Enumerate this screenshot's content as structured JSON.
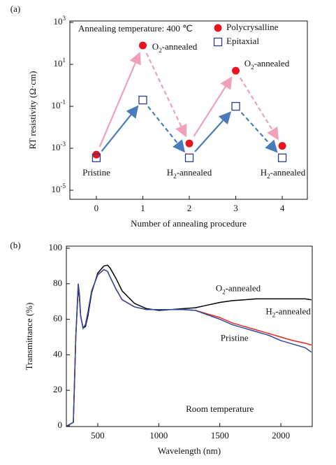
{
  "chart_data": [
    {
      "type": "scatter",
      "panel_label": "(a)",
      "y_label": "RT resistivity (Ω·cm)",
      "x_label": "Number of annealing procedure",
      "log_y": true,
      "legend": "upper right",
      "x": [
        0,
        1,
        2,
        3,
        4
      ],
      "xlim": [
        -0.57,
        4.54
      ],
      "xticks": [
        0,
        1,
        2,
        3,
        4
      ],
      "ylim": [
        3.7e-06,
        1175
      ],
      "yticks": [
        {
          "value": 1e-05,
          "label": "10^-5"
        },
        {
          "value": 0.001,
          "label": "10^-3"
        },
        {
          "value": 0.1,
          "label": "10^-1"
        },
        {
          "value": 10,
          "label": "10^1"
        },
        {
          "value": 1000,
          "label": "10^3"
        }
      ],
      "series": [
        {
          "name": "Polycrysalline",
          "color": "#e8141e",
          "marker": "filled-circle",
          "arrow_color": "#f0a0bc",
          "values": [
            0.0005,
            80,
            0.0017,
            5,
            0.0013
          ]
        },
        {
          "name": "Epitaxial",
          "color": "#2e3a8c",
          "marker": "open-square",
          "arrow_color": "#4a7cbc",
          "values": [
            0.00035,
            0.2,
            0.00035,
            0.1,
            0.00035
          ]
        }
      ],
      "annotations": [
        "Annealing temperature: 400 ℃",
        "Pristine",
        "O_2-annealed",
        "H_2-annealed",
        "O_2-annealed",
        "H_2-annealed"
      ]
    },
    {
      "type": "line",
      "panel_label": "(b)",
      "y_label": "Transmittance (%)",
      "x_label": "Wavelength (nm)",
      "x": [
        250,
        300,
        320,
        340,
        350,
        360,
        380,
        400,
        420,
        450,
        500,
        550,
        580,
        600,
        650,
        700,
        800,
        900,
        1000,
        1100,
        1200,
        1300,
        1400,
        1500,
        1600,
        1700,
        1800,
        1900,
        2000,
        2100,
        2200,
        2250
      ],
      "xlim": [
        243,
        2257
      ],
      "xticks": [
        500,
        1000,
        1500,
        2000
      ],
      "ylim": [
        -0.4,
        101.2
      ],
      "yticks": [
        0,
        20,
        40,
        60,
        80,
        100
      ],
      "series": [
        {
          "name": "O_2-annealed",
          "color": "#000000",
          "values": [
            0,
            2,
            50,
            78,
            72,
            62,
            55,
            56,
            62,
            75,
            86,
            90,
            90.5,
            89,
            83,
            76,
            69,
            66,
            65,
            65.5,
            66,
            66.5,
            68,
            69.5,
            70.5,
            71,
            71.5,
            71.5,
            71.5,
            71.5,
            71.5,
            71
          ]
        },
        {
          "name": "H_2-annealed",
          "color": "#e8281e",
          "values": [
            0,
            2,
            50,
            80,
            74,
            62,
            55,
            57,
            64,
            76,
            85,
            88,
            87,
            84,
            77,
            71,
            67,
            65.5,
            65.5,
            65.5,
            65.5,
            65,
            63,
            61,
            58,
            56,
            54,
            52,
            50,
            48,
            46.5,
            45.5
          ]
        },
        {
          "name": "Pristine",
          "color": "#2e4aa0",
          "values": [
            0,
            2,
            50,
            80,
            74,
            62,
            55,
            57,
            64,
            76,
            85,
            88,
            87,
            84,
            77,
            71,
            67,
            65.5,
            65.5,
            65.5,
            65.5,
            65,
            62.5,
            60,
            57,
            55,
            53,
            51,
            48,
            46,
            44,
            41.5
          ]
        }
      ],
      "annotations": [
        "Room temperature"
      ]
    }
  ]
}
